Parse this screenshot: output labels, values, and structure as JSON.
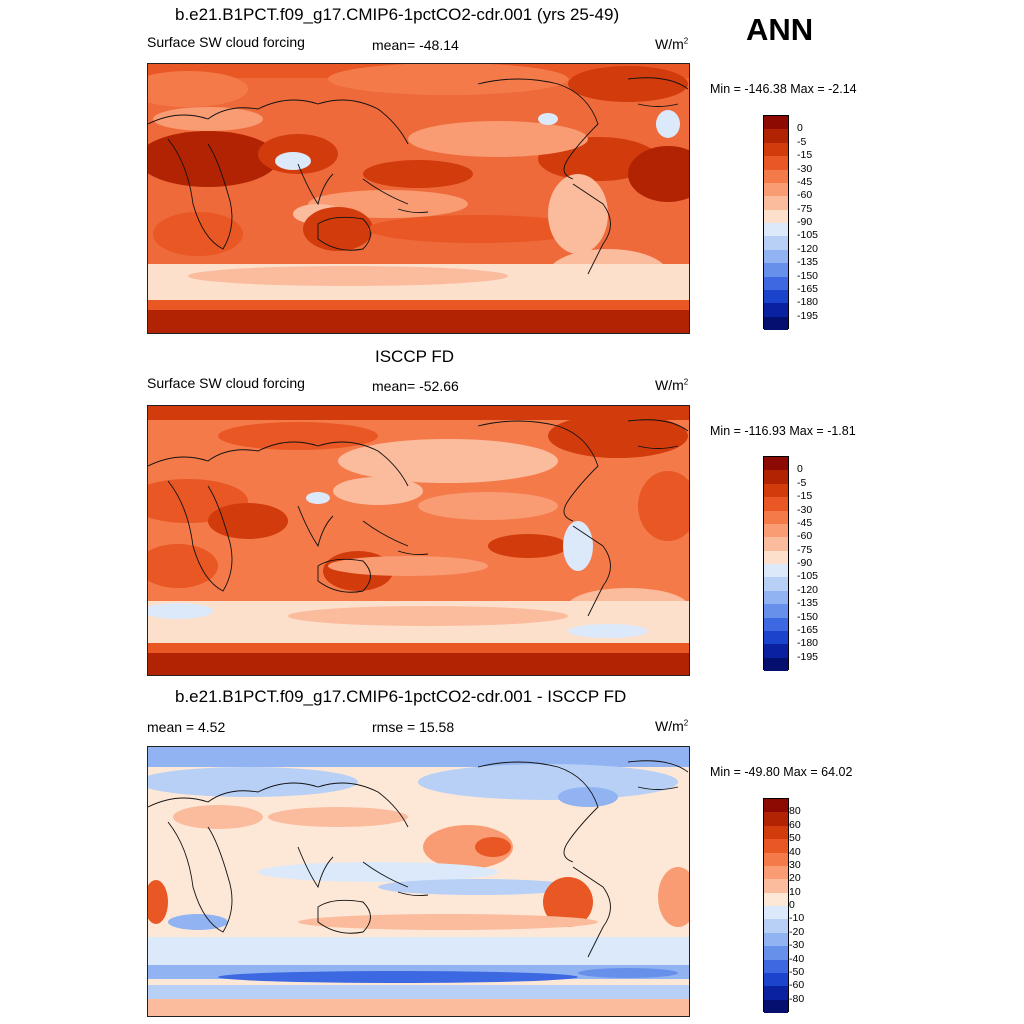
{
  "season": "ANN",
  "units_main": "W/m",
  "units_sup": "2",
  "panels": [
    {
      "title": "b.e21.B1PCT.f09_g17.CMIP6-1pctCO2-cdr.001 (yrs 25-49)",
      "left_label": "Surface SW cloud forcing",
      "mid_label": "mean= -48.14",
      "minmax": "Min = -146.38 Max =  -2.14",
      "colorbar": [
        "0",
        "-5",
        "-15",
        "-30",
        "-45",
        "-60",
        "-75",
        "-90",
        "-105",
        "-120",
        "-135",
        "-150",
        "-165",
        "-180",
        "-195"
      ],
      "colors": [
        "#8c0a02",
        "#b22303",
        "#d23b0c",
        "#e85724",
        "#f47a4a",
        "#f99b73",
        "#fbbb9d",
        "#fde0cc",
        "#dbe9fb",
        "#b8d0f6",
        "#91b3f1",
        "#6690ea",
        "#3c69e2",
        "#1a44cc",
        "#0a22a0",
        "#050f6e"
      ]
    },
    {
      "title": "ISCCP FD",
      "left_label": "Surface SW cloud forcing",
      "mid_label": "mean= -52.66",
      "minmax": "Min = -116.93 Max =  -1.81",
      "colorbar": [
        "0",
        "-5",
        "-15",
        "-30",
        "-45",
        "-60",
        "-75",
        "-90",
        "-105",
        "-120",
        "-135",
        "-150",
        "-165",
        "-180",
        "-195"
      ],
      "colors": [
        "#8c0a02",
        "#b22303",
        "#d23b0c",
        "#e85724",
        "#f47a4a",
        "#f99b73",
        "#fbbb9d",
        "#fde0cc",
        "#dbe9fb",
        "#b8d0f6",
        "#91b3f1",
        "#6690ea",
        "#3c69e2",
        "#1a44cc",
        "#0a22a0",
        "#050f6e"
      ]
    },
    {
      "title": "b.e21.B1PCT.f09_g17.CMIP6-1pctCO2-cdr.001 - ISCCP FD",
      "left_label": "mean =   4.52",
      "mid_label": "rmse =  15.58",
      "minmax": "Min = -49.80 Max =  64.02",
      "colorbar": [
        "80",
        "60",
        "50",
        "40",
        "30",
        "20",
        "10",
        "0",
        "-10",
        "-20",
        "-30",
        "-40",
        "-50",
        "-60",
        "-80"
      ],
      "colors": [
        "#8c0a02",
        "#b22303",
        "#d23b0c",
        "#e85724",
        "#f47a4a",
        "#f99b73",
        "#fbbb9d",
        "#fde8d8",
        "#dbe9fb",
        "#b8d0f6",
        "#91b3f1",
        "#6690ea",
        "#3c69e2",
        "#1a44cc",
        "#0a22a0",
        "#050f6e"
      ]
    }
  ]
}
